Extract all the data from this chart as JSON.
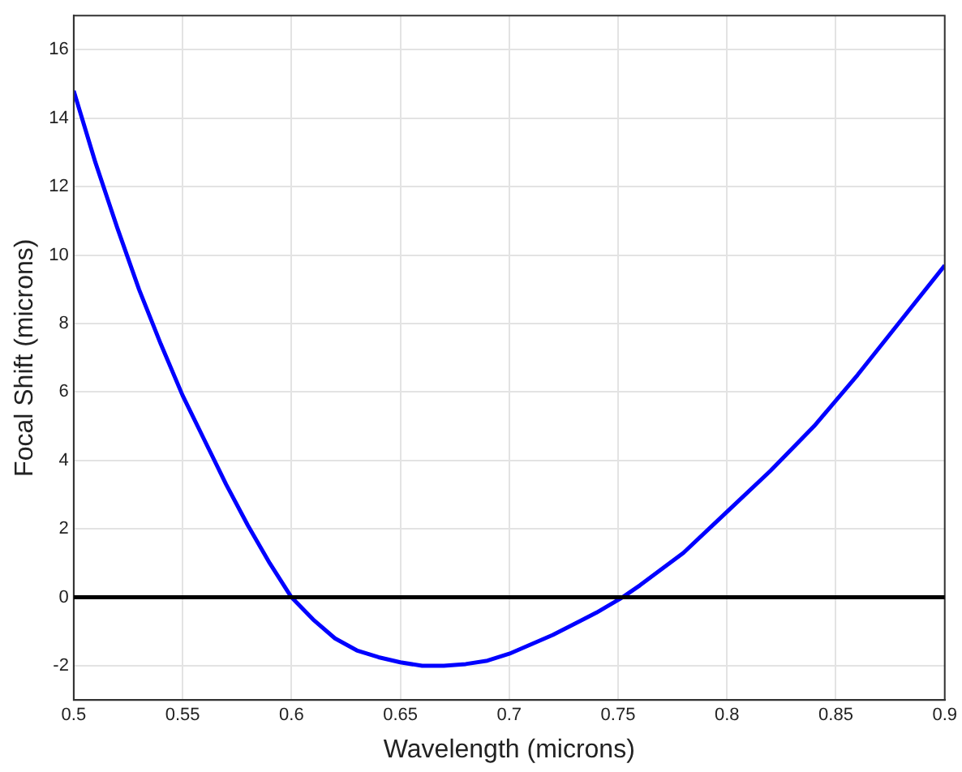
{
  "chart_data": {
    "type": "line",
    "xlabel": "Wavelength (microns)",
    "ylabel": "Focal Shift (microns)",
    "x": [
      0.5,
      0.51,
      0.52,
      0.53,
      0.54,
      0.55,
      0.56,
      0.57,
      0.58,
      0.59,
      0.6,
      0.61,
      0.62,
      0.63,
      0.64,
      0.65,
      0.66,
      0.67,
      0.68,
      0.69,
      0.7,
      0.72,
      0.74,
      0.752,
      0.76,
      0.78,
      0.8,
      0.82,
      0.84,
      0.86,
      0.88,
      0.9
    ],
    "series": [
      {
        "color": "#0000ff",
        "values": [
          14.8,
          12.7,
          10.8,
          9.0,
          7.4,
          5.9,
          4.6,
          3.3,
          2.1,
          1.0,
          0.0,
          -0.65,
          -1.2,
          -1.55,
          -1.75,
          -1.9,
          -2.0,
          -2.0,
          -1.95,
          -1.85,
          -1.65,
          -1.1,
          -0.45,
          0.0,
          0.35,
          1.3,
          2.5,
          3.7,
          5.0,
          6.5,
          8.1,
          9.7
        ]
      }
    ],
    "xlim": [
      0.5,
      0.9
    ],
    "xticks": [
      0.5,
      0.55,
      0.6,
      0.65,
      0.7,
      0.75,
      0.8,
      0.85,
      0.9
    ],
    "ylim": [
      -3,
      17
    ],
    "yticks": [
      -2,
      0,
      2,
      4,
      6,
      8,
      10,
      12,
      14,
      16
    ],
    "ref_lines": [
      {
        "axis": "y",
        "value": 0,
        "color": "#000000"
      }
    ],
    "grid": true,
    "legend": false,
    "marker": "none",
    "line_style": "solid"
  }
}
